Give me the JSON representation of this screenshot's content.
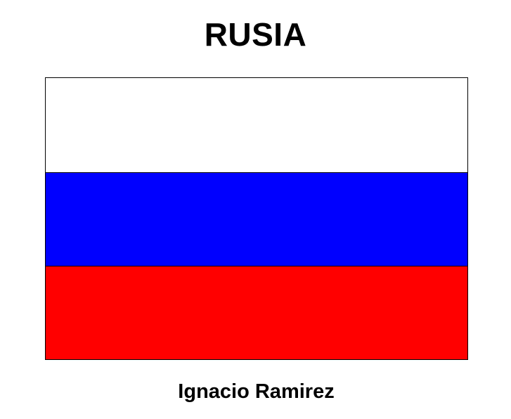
{
  "title": "RUSIA",
  "author": "Ignacio Ramirez",
  "flag": {
    "stripes": [
      {
        "name": "white-stripe",
        "color": "#ffffff"
      },
      {
        "name": "blue-stripe",
        "color": "#0000ff"
      },
      {
        "name": "red-stripe",
        "color": "#ff0000"
      }
    ],
    "border_color": "#000000"
  }
}
